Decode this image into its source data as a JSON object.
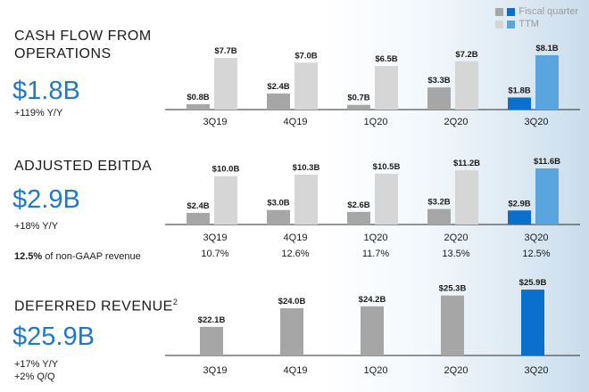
{
  "legend": {
    "fiscal_quarter": "Fiscal quarter",
    "ttm": "TTM"
  },
  "colors": {
    "fiscal_gray": "#a6a6a6",
    "ttm_gray": "#d6d6d6",
    "fiscal_blue": "#0b6fce",
    "ttm_blue": "#5aa5dd",
    "baseline": "#2b2b2b"
  },
  "panels": [
    {
      "title": "CASH FLOW FROM\nOPERATIONS",
      "title_sup": "",
      "big": "$1.8B",
      "sub1": "+119% Y/Y",
      "sub2": ""
    },
    {
      "title": "ADJUSTED EBITDA",
      "title_sup": "",
      "big": "$2.9B",
      "sub1": "+18% Y/Y",
      "sub2": "",
      "pct_bold": "12.5%",
      "pct_rest": " of non-GAAP revenue"
    },
    {
      "title": "DEFERRED REVENUE",
      "title_sup": "2",
      "big": "$25.9B",
      "sub1": "+17% Y/Y",
      "sub2": "+2% Q/Q"
    }
  ],
  "chart_data": [
    {
      "type": "bar",
      "categories": [
        "3Q19",
        "4Q19",
        "1Q20",
        "2Q20",
        "3Q20"
      ],
      "series": [
        {
          "name": "Fiscal quarter",
          "values": [
            0.8,
            2.4,
            0.7,
            3.3,
            1.8
          ],
          "labels": [
            "$0.8B",
            "$2.4B",
            "$0.7B",
            "$3.3B",
            "$1.8B"
          ]
        },
        {
          "name": "TTM",
          "values": [
            7.7,
            7.0,
            6.5,
            7.2,
            8.1
          ],
          "labels": [
            "$7.7B",
            "$7.0B",
            "$6.5B",
            "$7.2B",
            "$8.1B"
          ]
        }
      ],
      "sublabels": []
    },
    {
      "type": "bar",
      "categories": [
        "3Q19",
        "4Q19",
        "1Q20",
        "2Q20",
        "3Q20"
      ],
      "series": [
        {
          "name": "Fiscal quarter",
          "values": [
            2.4,
            3.0,
            2.6,
            3.2,
            2.9
          ],
          "labels": [
            "$2.4B",
            "$3.0B",
            "$2.6B",
            "$3.2B",
            "$2.9B"
          ]
        },
        {
          "name": "TTM",
          "values": [
            10.0,
            10.3,
            10.5,
            11.2,
            11.6
          ],
          "labels": [
            "$10.0B",
            "$10.3B",
            "$10.5B",
            "$11.2B",
            "$11.6B"
          ]
        }
      ],
      "sublabels": [
        "10.7%",
        "12.6%",
        "11.7%",
        "13.5%",
        "12.5%"
      ]
    },
    {
      "type": "bar",
      "categories": [
        "3Q19",
        "4Q19",
        "1Q20",
        "2Q20",
        "3Q20"
      ],
      "series": [
        {
          "name": "Fiscal quarter",
          "values": [
            22.1,
            24.0,
            24.2,
            25.3,
            25.9
          ],
          "labels": [
            "$22.1B",
            "$24.0B",
            "$24.2B",
            "$25.3B",
            "$25.9B"
          ]
        }
      ],
      "sublabels": []
    }
  ]
}
